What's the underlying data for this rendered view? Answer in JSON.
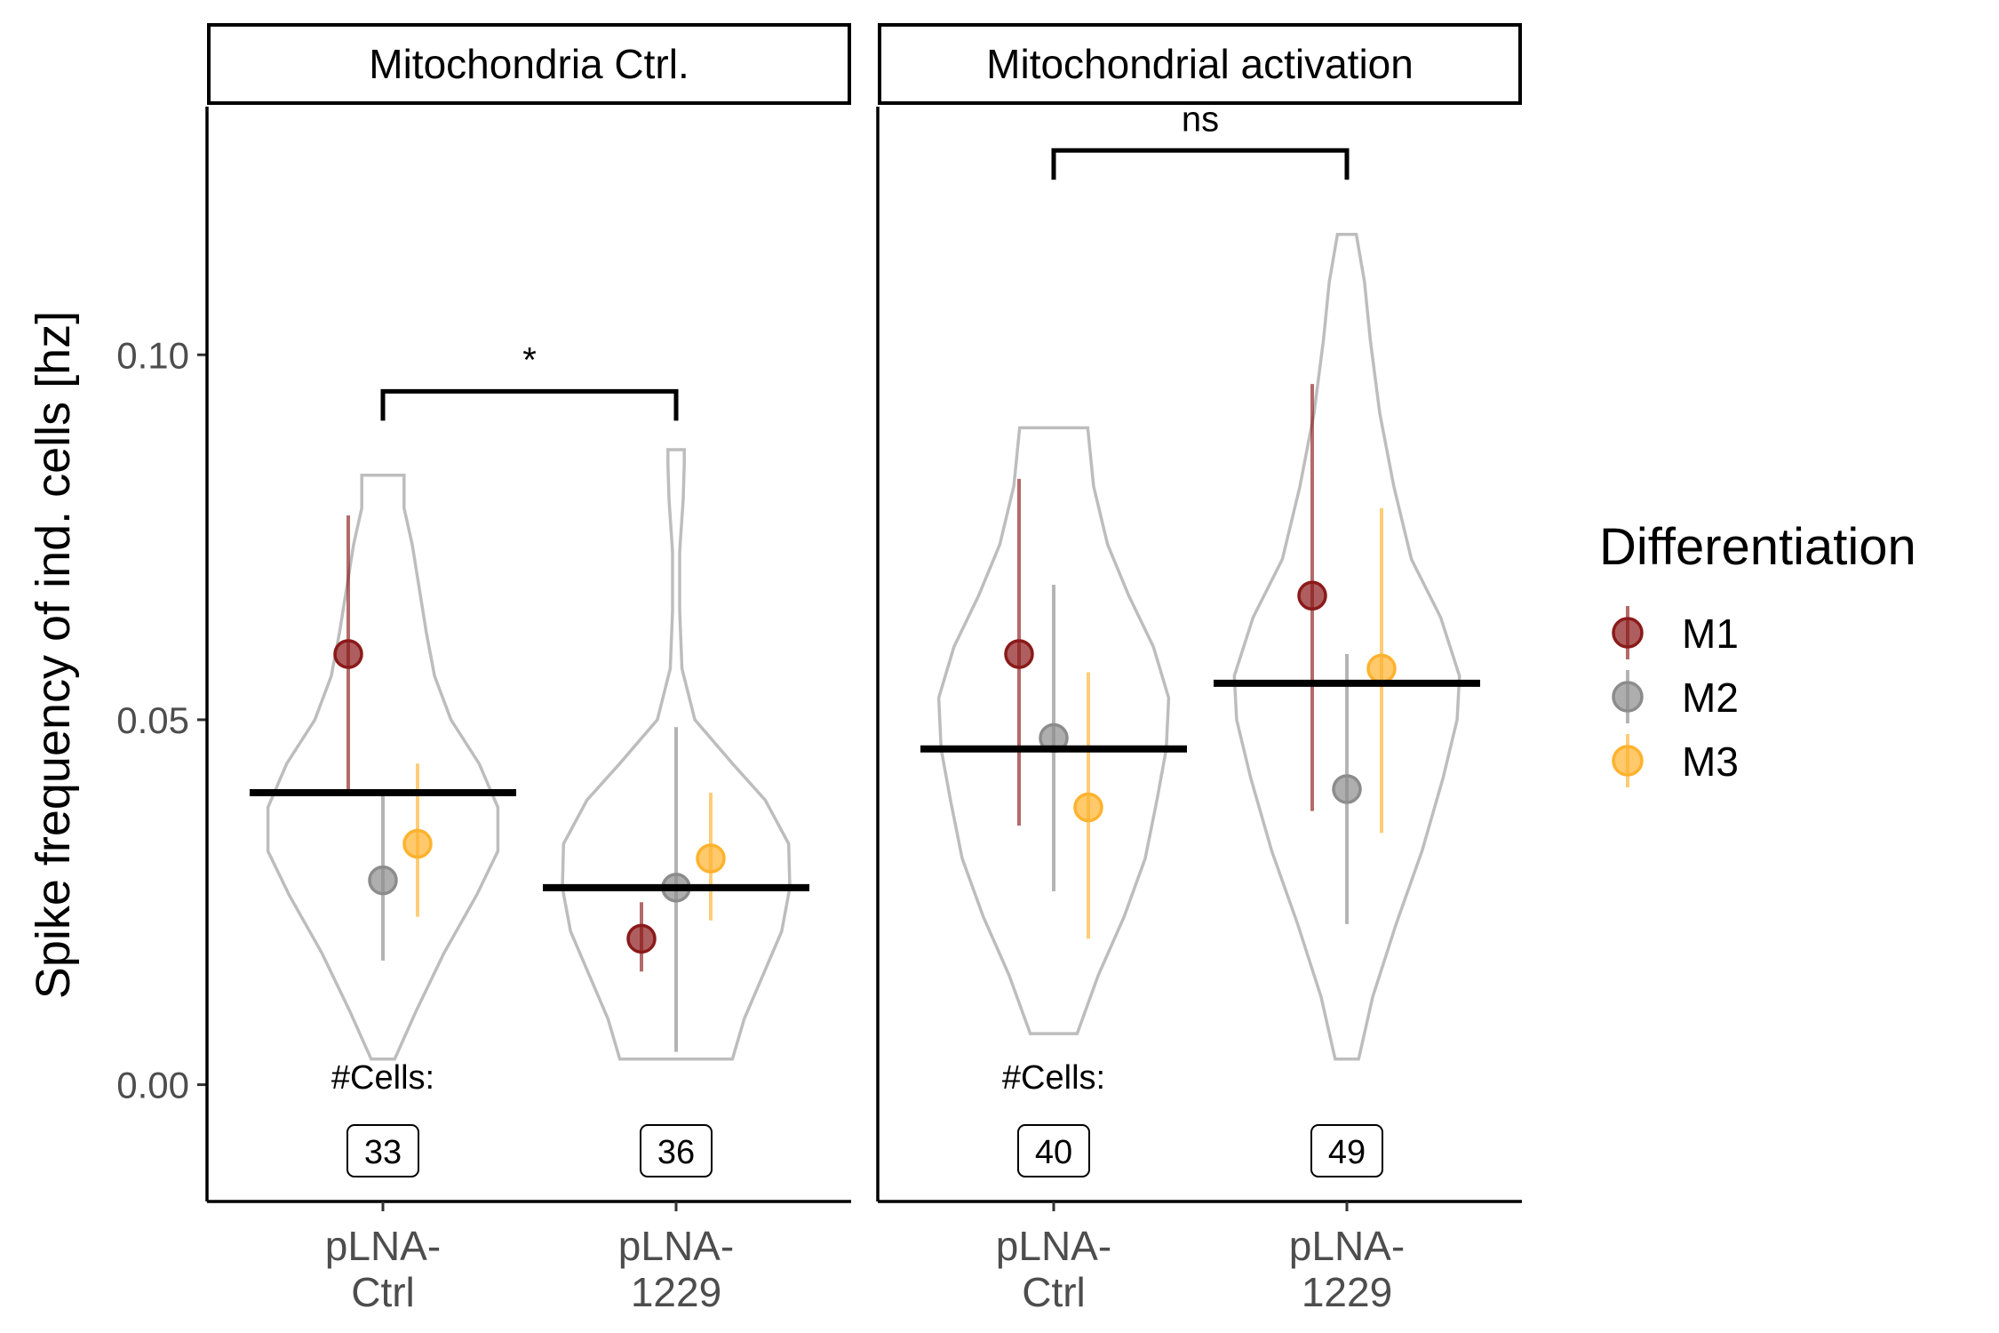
{
  "chart_data": {
    "type": "violin",
    "ylabel": "Spike frequency of ind. cells [hz]",
    "ylim": [
      -0.016,
      0.134
    ],
    "yticks": [
      0.0,
      0.05,
      0.1
    ],
    "ytick_labels": [
      "0.00",
      "0.05",
      "0.10"
    ],
    "categories": [
      "pLNA-Ctrl",
      "pLNA-1229"
    ],
    "category_lines": [
      [
        "pLNA-",
        "Ctrl"
      ],
      [
        "pLNA-",
        "1229"
      ]
    ],
    "legend": {
      "title": "Differentiation",
      "placement": "right",
      "items": [
        {
          "label": "M1",
          "color": "#8b1a1a"
        },
        {
          "label": "M2",
          "color": "#8c8c8c"
        },
        {
          "label": "M3",
          "color": "#ffb22e"
        }
      ]
    },
    "cells_label": "#Cells:",
    "panels": [
      {
        "title": "Mitochondria Ctrl.",
        "groups": [
          {
            "category": "pLNA-Ctrl",
            "cell_count": "33",
            "mean": 0.04,
            "violin": {
              "min": 0.0035,
              "max": 0.0835,
              "profile": [
                [
                  0.0035,
                  0.1
                ],
                [
                  0.01,
                  0.28
                ],
                [
                  0.018,
                  0.52
                ],
                [
                  0.026,
                  0.8
                ],
                [
                  0.032,
                  0.98
                ],
                [
                  0.038,
                  0.98
                ],
                [
                  0.044,
                  0.82
                ],
                [
                  0.05,
                  0.58
                ],
                [
                  0.056,
                  0.44
                ],
                [
                  0.062,
                  0.37
                ],
                [
                  0.068,
                  0.31
                ],
                [
                  0.074,
                  0.25
                ],
                [
                  0.079,
                  0.18
                ],
                [
                  0.0835,
                  0.18
                ]
              ]
            },
            "differentiations": [
              {
                "name": "M1",
                "value": 0.059,
                "low": 0.04,
                "high": 0.078
              },
              {
                "name": "M2",
                "value": 0.028,
                "low": 0.017,
                "high": 0.04
              },
              {
                "name": "M3",
                "value": 0.033,
                "low": 0.023,
                "high": 0.044
              }
            ]
          },
          {
            "category": "pLNA-1229",
            "cell_count": "36",
            "mean": 0.027,
            "violin": {
              "min": 0.0035,
              "max": 0.087,
              "profile": [
                [
                  0.0035,
                  0.48
                ],
                [
                  0.009,
                  0.58
                ],
                [
                  0.015,
                  0.74
                ],
                [
                  0.021,
                  0.9
                ],
                [
                  0.027,
                  0.97
                ],
                [
                  0.033,
                  0.96
                ],
                [
                  0.039,
                  0.76
                ],
                [
                  0.044,
                  0.48
                ],
                [
                  0.05,
                  0.16
                ],
                [
                  0.057,
                  0.05
                ],
                [
                  0.065,
                  0.03
                ],
                [
                  0.073,
                  0.03
                ],
                [
                  0.08,
                  0.06
                ],
                [
                  0.085,
                  0.07
                ],
                [
                  0.087,
                  0.07
                ]
              ]
            },
            "differentiations": [
              {
                "name": "M1",
                "value": 0.02,
                "low": 0.0155,
                "high": 0.025
              },
              {
                "name": "M2",
                "value": 0.027,
                "low": 0.0045,
                "high": 0.049
              },
              {
                "name": "M3",
                "value": 0.031,
                "low": 0.0225,
                "high": 0.04
              }
            ]
          }
        ],
        "comparison": {
          "label": "*",
          "y": 0.095
        }
      },
      {
        "title": "Mitochondrial activation",
        "groups": [
          {
            "category": "pLNA-Ctrl",
            "cell_count": "40",
            "mean": 0.046,
            "violin": {
              "min": 0.007,
              "max": 0.09,
              "profile": [
                [
                  0.007,
                  0.2
                ],
                [
                  0.015,
                  0.38
                ],
                [
                  0.023,
                  0.6
                ],
                [
                  0.031,
                  0.78
                ],
                [
                  0.039,
                  0.88
                ],
                [
                  0.046,
                  0.96
                ],
                [
                  0.053,
                  0.98
                ],
                [
                  0.06,
                  0.85
                ],
                [
                  0.067,
                  0.64
                ],
                [
                  0.074,
                  0.46
                ],
                [
                  0.082,
                  0.34
                ],
                [
                  0.09,
                  0.29
                ]
              ]
            },
            "differentiations": [
              {
                "name": "M1",
                "value": 0.059,
                "low": 0.0355,
                "high": 0.083
              },
              {
                "name": "M2",
                "value": 0.0475,
                "low": 0.0265,
                "high": 0.0685
              },
              {
                "name": "M3",
                "value": 0.038,
                "low": 0.02,
                "high": 0.0565
              }
            ]
          },
          {
            "category": "pLNA-1229",
            "cell_count": "49",
            "mean": 0.055,
            "violin": {
              "min": 0.0035,
              "max": 0.1165,
              "profile": [
                [
                  0.0035,
                  0.1
                ],
                [
                  0.012,
                  0.22
                ],
                [
                  0.022,
                  0.42
                ],
                [
                  0.032,
                  0.64
                ],
                [
                  0.042,
                  0.82
                ],
                [
                  0.05,
                  0.94
                ],
                [
                  0.056,
                  0.96
                ],
                [
                  0.064,
                  0.8
                ],
                [
                  0.072,
                  0.55
                ],
                [
                  0.082,
                  0.4
                ],
                [
                  0.092,
                  0.28
                ],
                [
                  0.102,
                  0.2
                ],
                [
                  0.11,
                  0.15
                ],
                [
                  0.1165,
                  0.08
                ]
              ]
            },
            "differentiations": [
              {
                "name": "M1",
                "value": 0.067,
                "low": 0.0375,
                "high": 0.096
              },
              {
                "name": "M2",
                "value": 0.0405,
                "low": 0.022,
                "high": 0.059
              },
              {
                "name": "M3",
                "value": 0.057,
                "low": 0.0345,
                "high": 0.079
              }
            ]
          }
        ],
        "comparison": {
          "label": "ns",
          "y": 0.128
        }
      }
    ]
  }
}
